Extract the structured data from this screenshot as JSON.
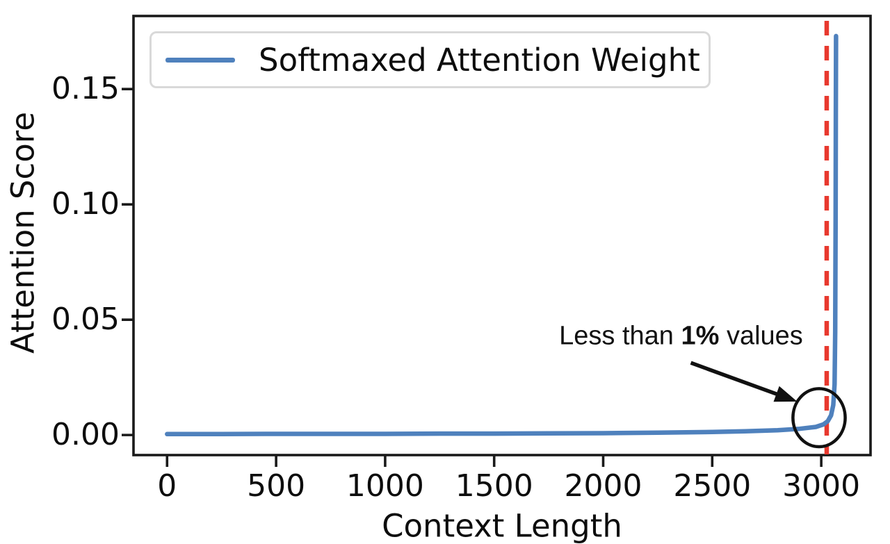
{
  "chart_data": {
    "type": "line",
    "xlabel": "Context Length",
    "ylabel": "Attention Score",
    "xlim": [
      -154,
      3226
    ],
    "ylim": [
      -0.0087,
      0.1817
    ],
    "xticks": [
      0,
      500,
      1000,
      1500,
      2000,
      2500,
      3000
    ],
    "xtick_labels": [
      "0",
      "500",
      "1000",
      "1500",
      "2000",
      "2500",
      "3000"
    ],
    "yticks": [
      0.0,
      0.05,
      0.1,
      0.15
    ],
    "ytick_labels": [
      "0.00",
      "0.05",
      "0.10",
      "0.15"
    ],
    "grid": false,
    "frame_color": "#1a1a1a",
    "legend": {
      "position": "upper left",
      "entries": [
        {
          "label": "Softmaxed Attention Weight",
          "color": "#4f81bd"
        }
      ]
    },
    "series": [
      {
        "name": "Softmaxed Attention Weight",
        "color": "#4f81bd",
        "x": [
          0,
          250,
          500,
          750,
          1000,
          1250,
          1500,
          1750,
          2000,
          2250,
          2500,
          2650,
          2800,
          2900,
          2975,
          3010,
          3030,
          3045,
          3055,
          3061,
          3064,
          3066,
          3067,
          3068
        ],
        "y": [
          0.0004,
          0.0004,
          0.0005,
          0.0005,
          0.0005,
          0.0006,
          0.0006,
          0.0007,
          0.0008,
          0.001,
          0.0013,
          0.0016,
          0.0021,
          0.0027,
          0.0035,
          0.0046,
          0.006,
          0.0085,
          0.013,
          0.022,
          0.045,
          0.095,
          0.14,
          0.173
        ]
      }
    ],
    "cutoff_line": {
      "x": 3025,
      "color": "#e8392e",
      "style": "dashed"
    },
    "annotations": {
      "label": {
        "prefix": "Less than ",
        "bold": "1%",
        "suffix": " values",
        "x": 2357,
        "y": 0.0428
      },
      "arrow": {
        "x1": 2402,
        "y1": 0.0313,
        "x2": 2890,
        "y2": 0.0145,
        "color": "#111111"
      },
      "circle": {
        "x": 2990,
        "y": 0.0075,
        "rx": 120,
        "ry": 0.0126,
        "color": "#111111"
      }
    }
  }
}
